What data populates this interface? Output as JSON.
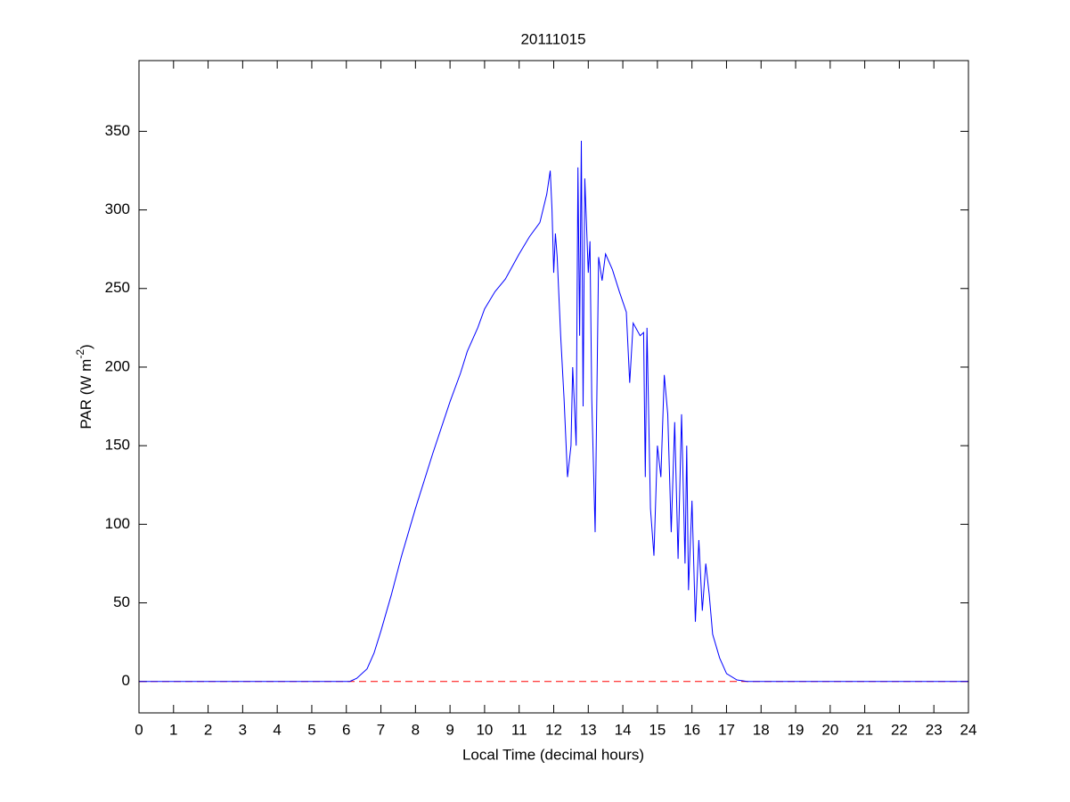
{
  "chart_data": {
    "type": "line",
    "title": "20111015",
    "xlabel": "Local Time (decimal hours)",
    "ylabel": [
      "PAR (W m",
      "-2",
      ")"
    ],
    "xlim": [
      0,
      24
    ],
    "ylim": [
      -20,
      395
    ],
    "xticks": [
      0,
      1,
      2,
      3,
      4,
      5,
      6,
      7,
      8,
      9,
      10,
      11,
      12,
      13,
      14,
      15,
      16,
      17,
      18,
      19,
      20,
      21,
      22,
      23,
      24
    ],
    "yticks": [
      0,
      50,
      100,
      150,
      200,
      250,
      300,
      350
    ],
    "series": [
      {
        "color": "#0000ff",
        "x": [
          0,
          6.1,
          6.3,
          6.6,
          6.8,
          7.0,
          7.3,
          7.6,
          8.0,
          8.5,
          9.0,
          9.3,
          9.5,
          9.8,
          10.0,
          10.3,
          10.6,
          11.0,
          11.3,
          11.6,
          11.8,
          11.9,
          11.95,
          12.0,
          12.05,
          12.1,
          12.2,
          12.3,
          12.4,
          12.5,
          12.55,
          12.6,
          12.65,
          12.7,
          12.75,
          12.8,
          12.85,
          12.9,
          13.0,
          13.05,
          13.1,
          13.2,
          13.3,
          13.4,
          13.5,
          13.7,
          13.9,
          14.1,
          14.2,
          14.3,
          14.5,
          14.6,
          14.65,
          14.7,
          14.8,
          14.9,
          15.0,
          15.1,
          15.2,
          15.3,
          15.4,
          15.5,
          15.6,
          15.7,
          15.8,
          15.85,
          15.9,
          16.0,
          16.1,
          16.2,
          16.3,
          16.4,
          16.5,
          16.6,
          16.8,
          17.0,
          17.3,
          17.6,
          24
        ],
        "values": [
          0,
          0,
          2,
          8,
          18,
          32,
          55,
          80,
          110,
          145,
          178,
          196,
          210,
          225,
          237,
          248,
          256,
          272,
          283,
          292,
          310,
          325,
          300,
          260,
          285,
          270,
          220,
          180,
          130,
          150,
          200,
          175,
          150,
          327,
          220,
          344,
          175,
          320,
          260,
          280,
          180,
          95,
          270,
          255,
          272,
          262,
          248,
          235,
          190,
          228,
          220,
          222,
          130,
          225,
          110,
          80,
          150,
          130,
          195,
          170,
          95,
          165,
          78,
          170,
          75,
          150,
          58,
          115,
          38,
          90,
          45,
          75,
          55,
          30,
          15,
          5,
          1,
          0,
          0
        ]
      }
    ],
    "hlines": [
      {
        "y": 0,
        "color": "#ff0000",
        "dashed": true
      }
    ]
  }
}
